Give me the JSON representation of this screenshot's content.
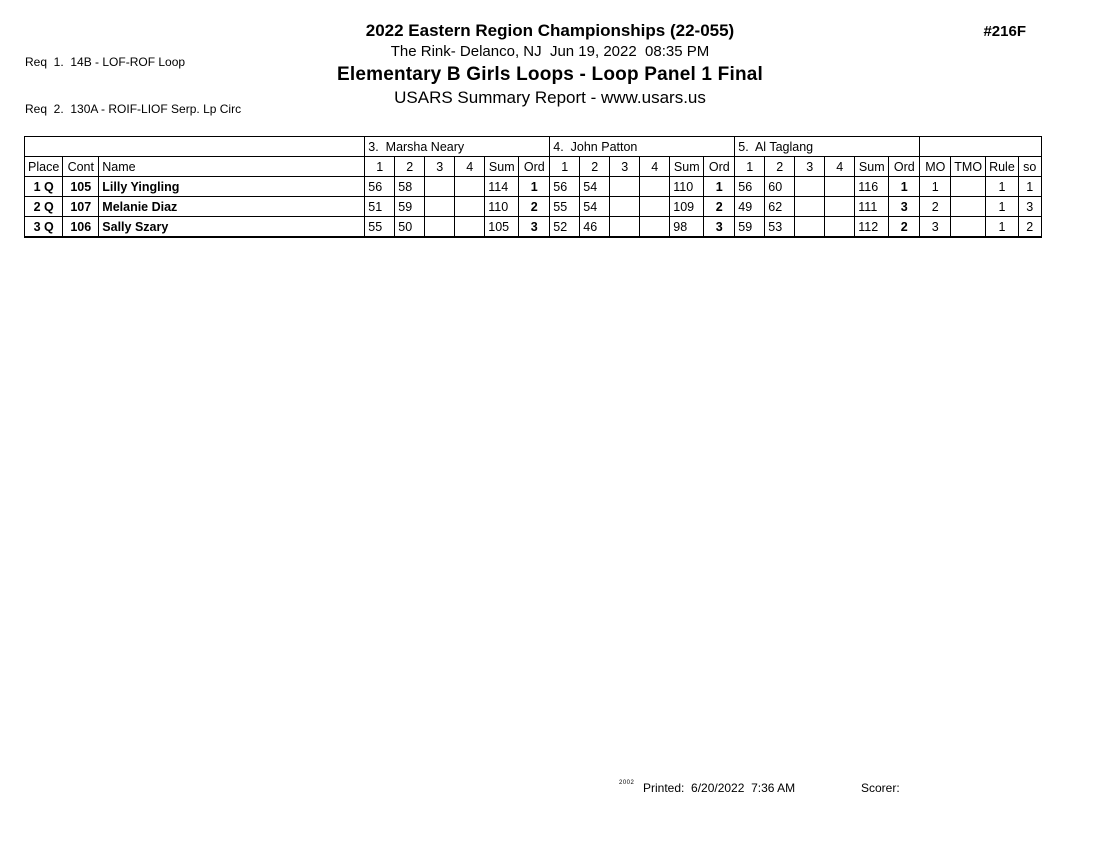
{
  "requirements": {
    "req1": "Req  1.  14B - LOF-ROF Loop",
    "req2": "Req  2.  130A - ROIF-LIOF Serp. Lp Circ"
  },
  "header": {
    "event_code": "#216F",
    "championship_title": "2022 Eastern Region Championships (22-055)",
    "venue_datetime": "The Rink- Delanco, NJ  Jun 19, 2022  08:35 PM",
    "event_title": "Elementary B Girls Loops - Loop Panel 1 Final",
    "report_title": "USARS Summary Report - www.usars.us"
  },
  "results_table": {
    "left_columns": [
      "Place",
      "Cont",
      "Name"
    ],
    "judge_columns": [
      "1",
      "2",
      "3",
      "4",
      "Sum",
      "Ord"
    ],
    "right_columns": [
      "MO",
      "TMO",
      "Rule",
      "so"
    ],
    "judges": [
      "3.  Marsha Neary",
      "4.  John Patton",
      "5.  Al Taglang"
    ],
    "rows": [
      {
        "place": "1 Q",
        "cont": "105",
        "name": "Lilly Yingling",
        "judge_scores": [
          {
            "marks": [
              "56",
              "58",
              "",
              ""
            ],
            "sum": "114",
            "ord": "1"
          },
          {
            "marks": [
              "56",
              "54",
              "",
              ""
            ],
            "sum": "110",
            "ord": "1"
          },
          {
            "marks": [
              "56",
              "60",
              "",
              ""
            ],
            "sum": "116",
            "ord": "1"
          }
        ],
        "mo": "1",
        "tmo": "",
        "rule": "1",
        "so": "1"
      },
      {
        "place": "2 Q",
        "cont": "107",
        "name": "Melanie Diaz",
        "judge_scores": [
          {
            "marks": [
              "51",
              "59",
              "",
              ""
            ],
            "sum": "110",
            "ord": "2"
          },
          {
            "marks": [
              "55",
              "54",
              "",
              ""
            ],
            "sum": "109",
            "ord": "2"
          },
          {
            "marks": [
              "49",
              "62",
              "",
              ""
            ],
            "sum": "111",
            "ord": "3"
          }
        ],
        "mo": "2",
        "tmo": "",
        "rule": "1",
        "so": "3"
      },
      {
        "place": "3 Q",
        "cont": "106",
        "name": "Sally Szary",
        "judge_scores": [
          {
            "marks": [
              "55",
              "50",
              "",
              ""
            ],
            "sum": "105",
            "ord": "3"
          },
          {
            "marks": [
              "52",
              "46",
              "",
              ""
            ],
            "sum": "98",
            "ord": "3"
          },
          {
            "marks": [
              "59",
              "53",
              "",
              ""
            ],
            "sum": "112",
            "ord": "2"
          }
        ],
        "mo": "3",
        "tmo": "",
        "rule": "1",
        "so": "2"
      }
    ]
  },
  "footer": {
    "version_mark": "2002",
    "printed_label": "Printed:  6/20/2022  7:36 AM",
    "scorer_label": "Scorer:"
  }
}
